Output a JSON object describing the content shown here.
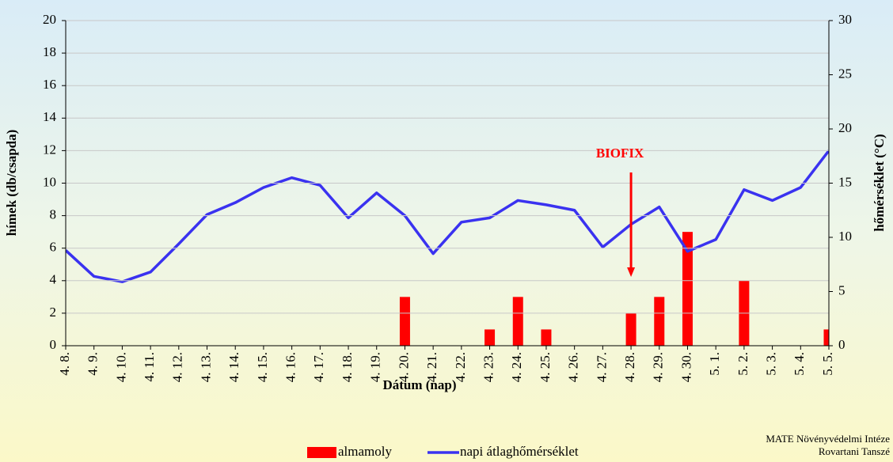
{
  "chart_data": {
    "type": "bar-line",
    "categories": [
      "4. 8.",
      "4. 9.",
      "4. 10.",
      "4. 11.",
      "4. 12.",
      "4. 13.",
      "4. 14.",
      "4. 15.",
      "4. 16.",
      "4. 17.",
      "4. 18.",
      "4. 19.",
      "4. 20.",
      "4. 21.",
      "4. 22.",
      "4. 23.",
      "4. 24.",
      "4. 25.",
      "4. 26.",
      "4. 27.",
      "4. 28.",
      "4. 29.",
      "4. 30.",
      "5. 1.",
      "5. 2.",
      "5. 3.",
      "5. 4.",
      "5. 5."
    ],
    "series": [
      {
        "name": "almamoly",
        "type": "bar",
        "color": "#ff0000",
        "axis": "y",
        "values": [
          0,
          0,
          0,
          0,
          0,
          0,
          0,
          0,
          0,
          0,
          0,
          0,
          3,
          0,
          0,
          1,
          3,
          1,
          0,
          0,
          2,
          3,
          7,
          0,
          4,
          0,
          0,
          1
        ]
      },
      {
        "name": "napi átlaghőmérséklet",
        "type": "line",
        "color": "#3a32f0",
        "axis": "y2",
        "values": [
          8.8,
          6.4,
          5.9,
          6.8,
          9.4,
          12.1,
          13.2,
          14.6,
          15.5,
          14.8,
          11.8,
          14.1,
          12.0,
          8.5,
          11.4,
          11.8,
          13.4,
          13.0,
          12.5,
          9.1,
          11.2,
          12.8,
          8.7,
          9.8,
          14.4,
          13.4,
          14.6,
          18.0
        ]
      }
    ],
    "xlabel": "Dátum (nap)",
    "ylabel": "hímek (db/csapda)",
    "y2label": "hőmérséklet (°C)",
    "ylim": [
      0,
      20
    ],
    "yticks": [
      0,
      2,
      4,
      6,
      8,
      10,
      12,
      14,
      16,
      18,
      20
    ],
    "y2lim": [
      0,
      30
    ],
    "y2ticks": [
      0,
      5,
      10,
      15,
      20,
      25,
      30
    ],
    "grid": true,
    "legend": "bottom",
    "annotations": [
      {
        "text": "BIOFIX",
        "category": "4. 28.",
        "color": "#ff0000"
      }
    ],
    "source": [
      "MATE Növényvédelmi Intéze",
      "Rovartani Tanszé"
    ]
  }
}
